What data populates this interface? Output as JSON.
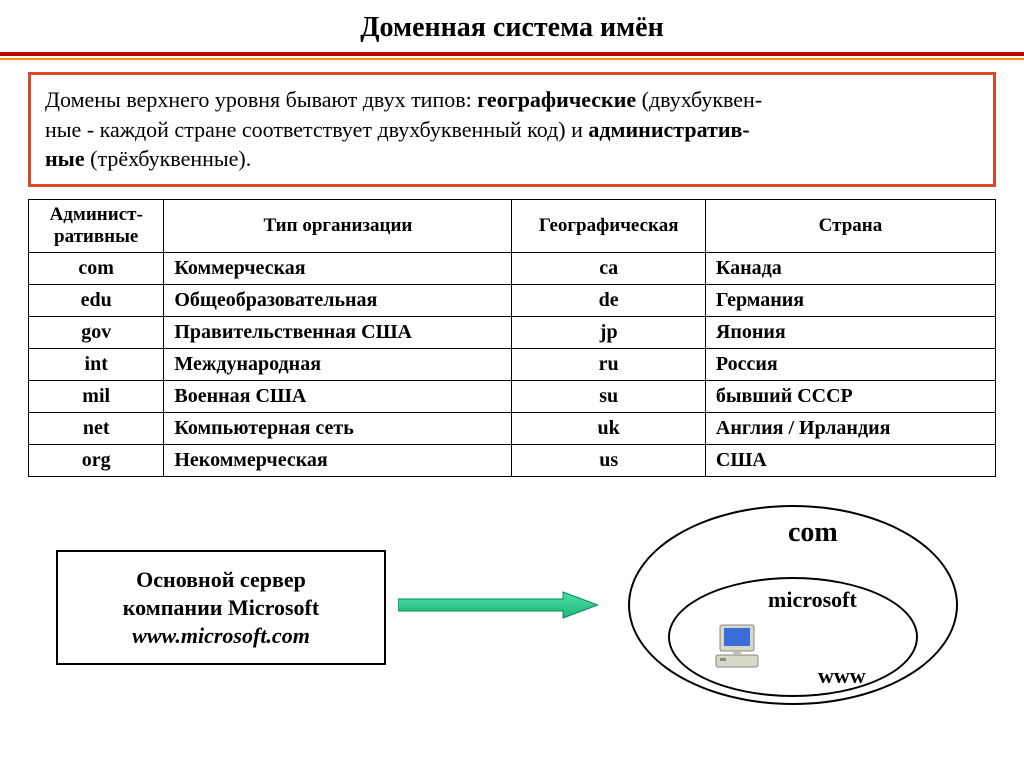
{
  "title": "Доменная система имён",
  "intro": {
    "pre1": "Домены верхнего уровня бывают двух типов: ",
    "bold1": "географические",
    "post1": " (двухбуквен-",
    "pre2": "ные - каждой стране соответствует двухбуквенный код) и ",
    "bold2": "административ-",
    "pre3": "ные",
    "post3": " (трёхбуквенные)."
  },
  "table": {
    "headers": {
      "admin": "Админист-\nративные",
      "type": "Тип организации",
      "geo": "Географическая",
      "country": "Страна"
    },
    "rows": [
      {
        "admin": "com",
        "type": "Коммерческая",
        "geo": "ca",
        "country": "Канада"
      },
      {
        "admin": "edu",
        "type": "Общеобразовательная",
        "geo": "de",
        "country": "Германия"
      },
      {
        "admin": "gov",
        "type": "Правительственная США",
        "geo": "jp",
        "country": "Япония"
      },
      {
        "admin": "int",
        "type": "Международная",
        "geo": "ru",
        "country": "Россия"
      },
      {
        "admin": "mil",
        "type": "Военная США",
        "geo": "su",
        "country": "бывший СССР"
      },
      {
        "admin": "net",
        "type": "Компьютерная сеть",
        "geo": "uk",
        "country": "Англия / Ирландия"
      },
      {
        "admin": "org",
        "type": "Некоммерческая",
        "geo": "us",
        "country": "США"
      }
    ]
  },
  "server_box": {
    "line1": "Основной сервер",
    "line2": "компании Microsoft",
    "line3": "www.microsoft.com"
  },
  "diagram": {
    "com_label": "com",
    "microsoft_label": "microsoft",
    "www_label": "www"
  },
  "colors": {
    "red_line": "#c00000",
    "orange_line": "#ff8c00",
    "intro_border": "#d84a2a",
    "arrow_fill": "#2dc98f",
    "arrow_stroke": "#0a8a5a",
    "monitor_body": "#d8d8c8",
    "monitor_screen": "#3a6dd8",
    "text": "#000000"
  }
}
